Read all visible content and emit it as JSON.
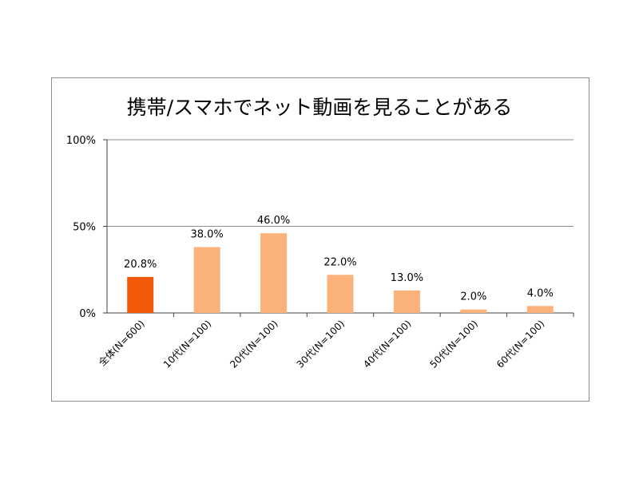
{
  "chart_data": {
    "type": "bar",
    "title": "携帯/スマホでネット動画を見ることがある",
    "categories": [
      "全体(N=600)",
      "10代(N=100)",
      "20代(N=100)",
      "30代(N=100)",
      "40代(N=100)",
      "50代(N=100)",
      "60代(N=100)"
    ],
    "values": [
      20.8,
      38.0,
      46.0,
      22.0,
      13.0,
      2.0,
      4.0
    ],
    "data_labels": [
      "20.8%",
      "38.0%",
      "46.0%",
      "22.0%",
      "13.0%",
      "2.0%",
      "4.0%"
    ],
    "y_ticks": [
      "0%",
      "50%",
      "100%"
    ],
    "ylim": [
      0,
      100
    ],
    "grid": true,
    "legend": "none",
    "colors": {
      "highlight": "#f05a0a",
      "bar": "#fbb27a",
      "gridline": "#8c8c8c",
      "axis": "#404040",
      "frame": "#8c8c8c"
    }
  }
}
